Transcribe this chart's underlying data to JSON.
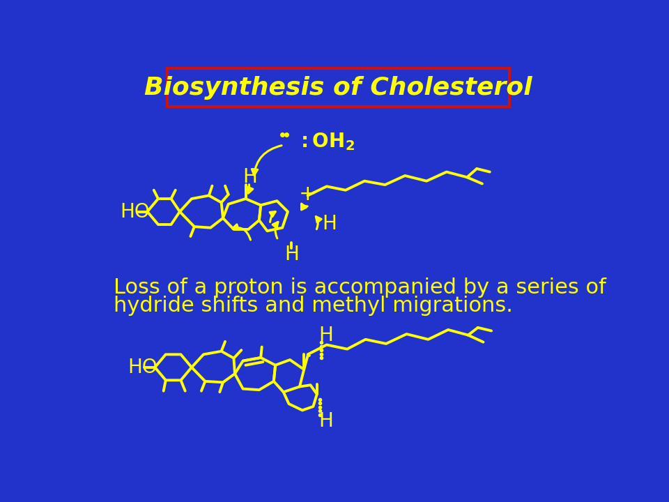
{
  "bg_color": "#2233CC",
  "yellow": "#FFFF00",
  "red": "#CC1111",
  "title": "Biosynthesis of Cholesterol",
  "body_line1": "Loss of a proton is accompanied by a series of",
  "body_line2": "hydride shifts and methyl migrations.",
  "title_fontsize": 26,
  "label_fontsize": 20,
  "body_fontsize": 22,
  "lw": 2.8
}
